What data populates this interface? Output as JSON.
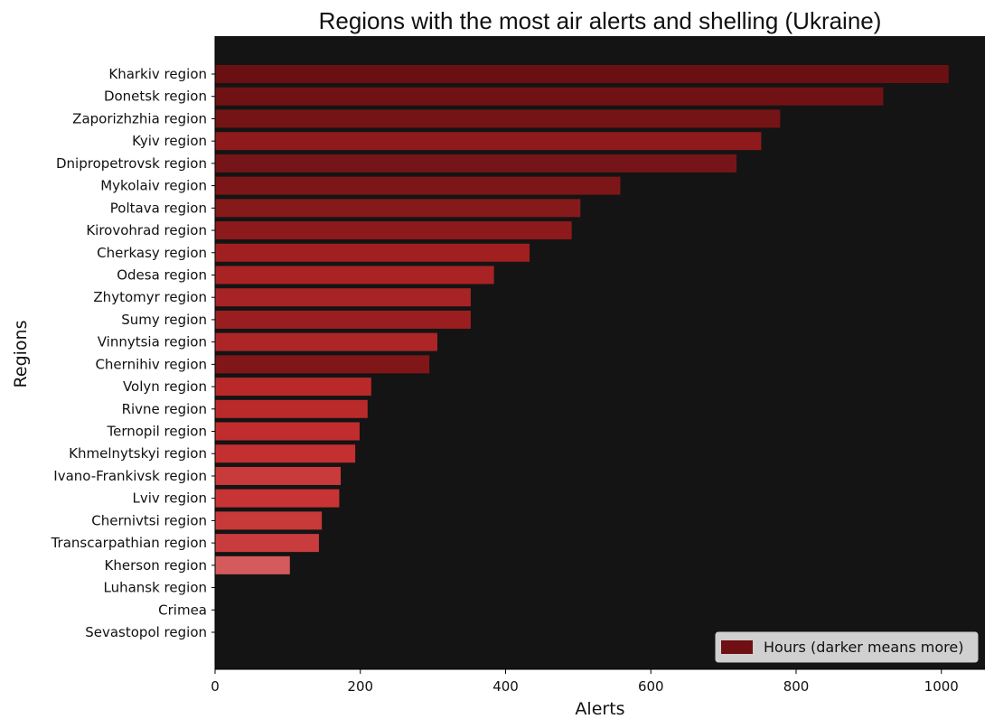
{
  "chart_data": {
    "type": "bar",
    "orientation": "horizontal",
    "title": "Regions with the most air alerts and shelling (Ukraine)",
    "xlabel": "Alerts",
    "ylabel": "Regions",
    "xlim": [
      0,
      1060
    ],
    "xticks": [
      0,
      200,
      400,
      600,
      800,
      1000
    ],
    "grid": false,
    "legend": {
      "label": "Hours (darker means more)",
      "placement": "lower-right",
      "swatch_color": "#6e1014"
    },
    "colors": {
      "plot_background": "#141414",
      "page_background": "#ffffff"
    },
    "categories": [
      "Kharkiv region",
      "Donetsk region",
      "Zaporizhzhia region",
      "Kyiv region",
      "Dnipropetrovsk region",
      "Mykolaiv region",
      "Poltava region",
      "Kirovohrad region",
      "Cherkasy region",
      "Odesa region",
      "Zhytomyr region",
      "Sumy region",
      "Vinnytsia region",
      "Chernihiv region",
      "Volyn region",
      "Rivne region",
      "Ternopil region",
      "Khmelnytskyi region",
      "Ivano-Frankivsk region",
      "Lviv region",
      "Chernivtsi region",
      "Transcarpathian region",
      "Kherson region",
      "Luhansk region",
      "Crimea",
      "Sevastopol region"
    ],
    "values": [
      1010,
      920,
      778,
      752,
      718,
      558,
      503,
      491,
      433,
      384,
      352,
      352,
      306,
      295,
      215,
      210,
      199,
      193,
      173,
      171,
      147,
      143,
      103,
      0,
      0,
      0
    ],
    "bar_colors": [
      "#6b1012",
      "#701214",
      "#741416",
      "#8e1a1c",
      "#761517",
      "#7c1618",
      "#861a1b",
      "#8c1a1c",
      "#a11f21",
      "#a92325",
      "#a82326",
      "#9a1e20",
      "#ae2527",
      "#801618",
      "#b9292a",
      "#bb2a2b",
      "#c12d2e",
      "#c42f30",
      "#c93a3b",
      "#c83435",
      "#c8393a",
      "#c93c3d",
      "#d45a5b",
      "#d45a5b",
      "#d45a5b",
      "#d45a5b"
    ]
  }
}
